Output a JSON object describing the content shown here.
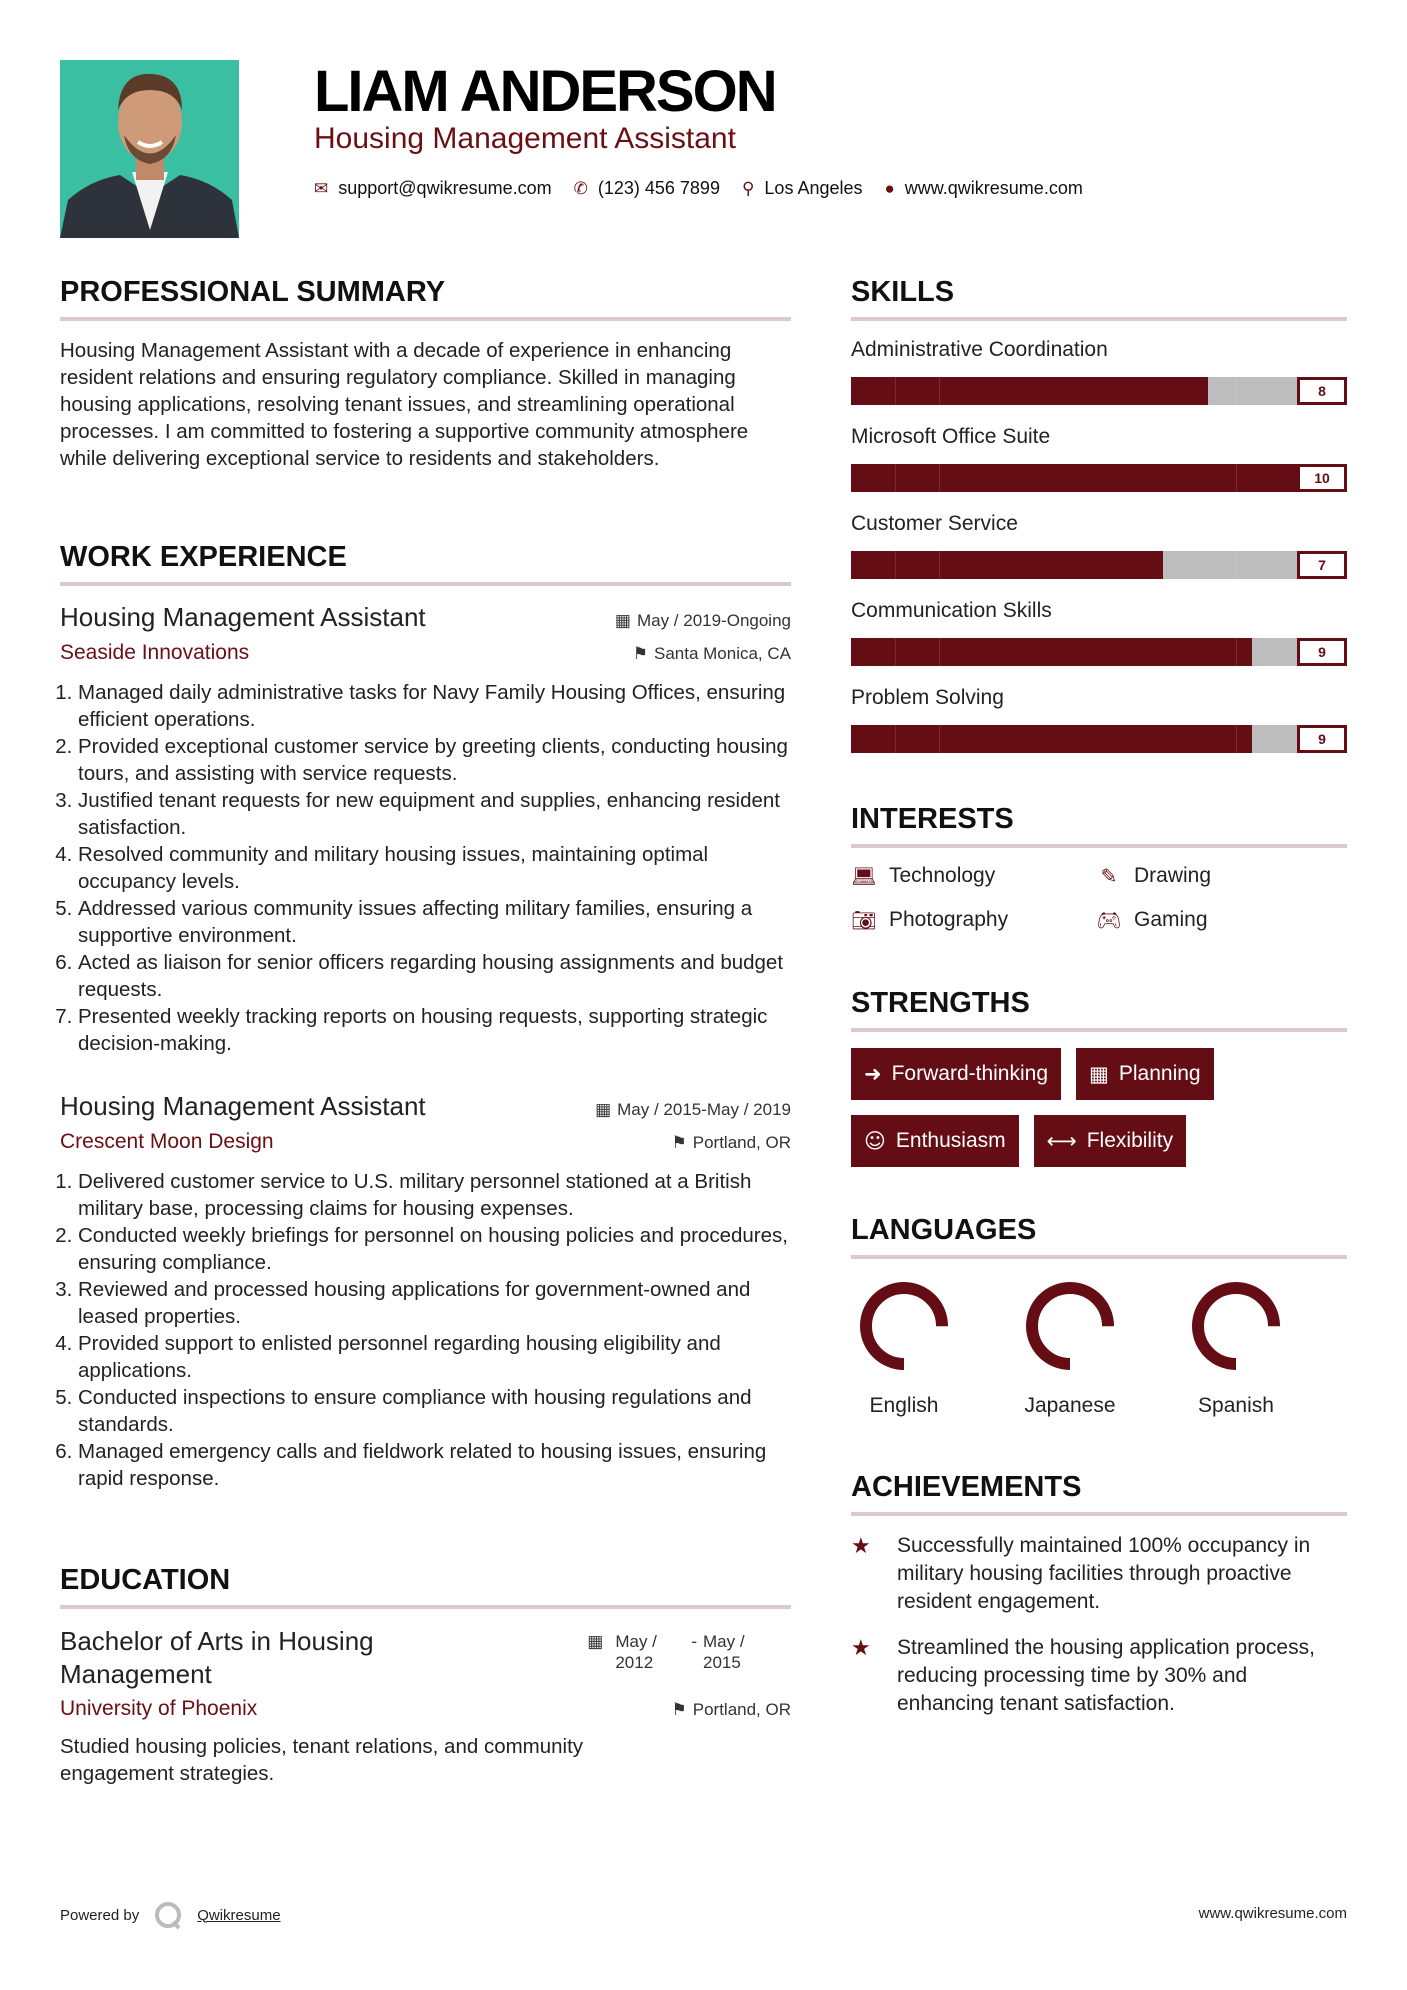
{
  "header": {
    "name": "LIAM ANDERSON",
    "title": "Housing Management Assistant",
    "email": "support@qwikresume.com",
    "phone": "(123) 456 7899",
    "location": "Los Angeles",
    "website": "www.qwikresume.com"
  },
  "summary": {
    "heading": "PROFESSIONAL SUMMARY",
    "text": "Housing Management Assistant with a decade of experience in enhancing resident relations and ensuring regulatory compliance. Skilled in managing housing applications, resolving tenant issues, and streamlining operational processes. I am committed to fostering a supportive community atmosphere while delivering exceptional service to residents and stakeholders."
  },
  "experience": {
    "heading": "WORK EXPERIENCE",
    "jobs": [
      {
        "title": "Housing Management Assistant",
        "dates": "May / 2019-Ongoing",
        "company": "Seaside Innovations",
        "location": "Santa Monica, CA",
        "bullets": [
          "Managed daily administrative tasks for Navy Family Housing Offices, ensuring efficient operations.",
          "Provided exceptional customer service by greeting clients, conducting housing tours, and assisting with service requests.",
          "Justified tenant requests for new equipment and supplies, enhancing resident satisfaction.",
          "Resolved community and military housing issues, maintaining optimal occupancy levels.",
          "Addressed various community issues affecting military families, ensuring a supportive environment.",
          "Acted as liaison for senior officers regarding housing assignments and budget requests.",
          "Presented weekly tracking reports on housing requests, supporting strategic decision-making."
        ]
      },
      {
        "title": "Housing Management Assistant",
        "dates": "May / 2015-May / 2019",
        "company": "Crescent Moon Design",
        "location": "Portland, OR",
        "bullets": [
          "Delivered customer service to U.S. military personnel stationed at a British military base, processing claims for housing expenses.",
          "Conducted weekly briefings for personnel on housing policies and procedures, ensuring compliance.",
          "Reviewed and processed housing applications for government-owned and leased properties.",
          "Provided support to enlisted personnel regarding housing eligibility and applications.",
          "Conducted inspections to ensure compliance with housing regulations and standards.",
          "Managed emergency calls and fieldwork related to housing issues, ensuring rapid response."
        ]
      }
    ]
  },
  "education": {
    "heading": "EDUCATION",
    "degree": "Bachelor of Arts in Housing Management",
    "start": "May / 2012",
    "end": "May / 2015",
    "separator": "-",
    "school": "University of Phoenix",
    "location": "Portland, OR",
    "description": "Studied housing policies, tenant relations, and community engagement strategies."
  },
  "skills": {
    "heading": "SKILLS",
    "max": 10,
    "items": [
      {
        "name": "Administrative Coordination",
        "level": 8,
        "label": "8"
      },
      {
        "name": "Microsoft Office Suite",
        "level": 10,
        "label": "10"
      },
      {
        "name": "Customer Service",
        "level": 7,
        "label": "7"
      },
      {
        "name": "Communication Skills",
        "level": 9,
        "label": "9"
      },
      {
        "name": "Problem Solving",
        "level": 9,
        "label": "9"
      }
    ]
  },
  "interests": {
    "heading": "INTERESTS",
    "items": [
      {
        "name": "Technology",
        "icon": "laptop-icon"
      },
      {
        "name": "Drawing",
        "icon": "pencil-icon"
      },
      {
        "name": "Photography",
        "icon": "camera-icon"
      },
      {
        "name": "Gaming",
        "icon": "gamepad-icon"
      }
    ]
  },
  "strengths": {
    "heading": "STRENGTHS",
    "items": [
      {
        "name": "Forward-thinking",
        "icon": "arrow-right-icon"
      },
      {
        "name": "Planning",
        "icon": "calendar-icon"
      },
      {
        "name": "Enthusiasm",
        "icon": "smile-icon"
      },
      {
        "name": "Flexibility",
        "icon": "arrows-horizontal-icon"
      }
    ]
  },
  "languages": {
    "heading": "LANGUAGES",
    "items": [
      {
        "name": "English",
        "level": 0.75
      },
      {
        "name": "Japanese",
        "level": 0.75
      },
      {
        "name": "Spanish",
        "level": 0.75
      }
    ]
  },
  "achievements": {
    "heading": "ACHIEVEMENTS",
    "items": [
      "Successfully maintained 100% occupancy in military housing facilities through proactive resident engagement.",
      "Streamlined the housing application process, reducing processing time by 30% and enhancing tenant satisfaction."
    ]
  },
  "footer": {
    "powered_by": "Powered by",
    "brand": "Qwikresume",
    "website": "www.qwikresume.com"
  },
  "colors": {
    "accent": "#650d14",
    "rule": "#dcc9cd",
    "photo_bg": "#3bbfa3"
  }
}
